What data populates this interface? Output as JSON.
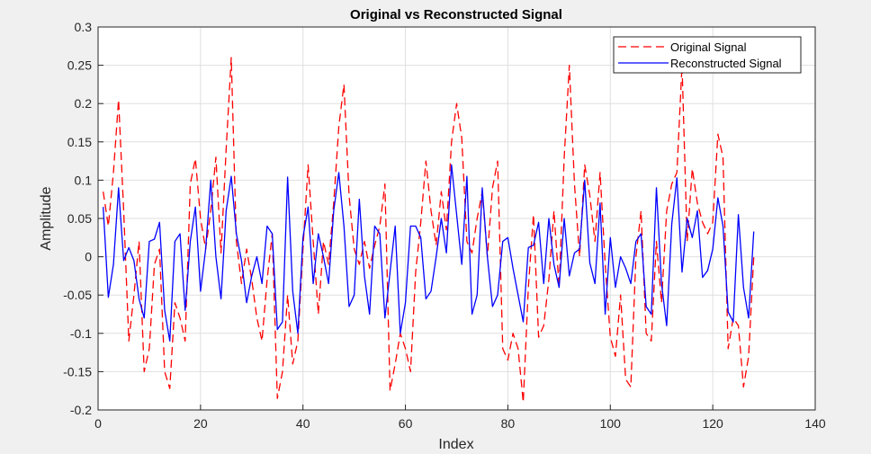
{
  "chart_data": {
    "type": "line",
    "title": "Original vs Reconstructed Signal",
    "xlabel": "Index",
    "ylabel": "Amplitude",
    "xlim": [
      0,
      140
    ],
    "ylim": [
      -0.2,
      0.3
    ],
    "xticks": [
      "0",
      "20",
      "40",
      "60",
      "80",
      "100",
      "120",
      "140"
    ],
    "yticks": [
      "-0.2",
      "-0.15",
      "-0.1",
      "-0.05",
      "0",
      "0.05",
      "0.1",
      "0.15",
      "0.2",
      "0.25",
      "0.3"
    ],
    "grid": true,
    "legend_position": "top-right",
    "series": [
      {
        "name": "Original Signal",
        "color": "#ff0000",
        "style": "dashed",
        "x": [
          1,
          2,
          3,
          4,
          5,
          6,
          7,
          8,
          9,
          10,
          11,
          12,
          13,
          14,
          15,
          16,
          17,
          18,
          19,
          20,
          21,
          22,
          23,
          24,
          25,
          26,
          27,
          28,
          29,
          30,
          31,
          32,
          33,
          34,
          35,
          36,
          37,
          38,
          39,
          40,
          41,
          42,
          43,
          44,
          45,
          46,
          47,
          48,
          49,
          50,
          51,
          52,
          53,
          54,
          55,
          56,
          57,
          58,
          59,
          60,
          61,
          62,
          63,
          64,
          65,
          66,
          67,
          68,
          69,
          70,
          71,
          72,
          73,
          74,
          75,
          76,
          77,
          78,
          79,
          80,
          81,
          82,
          83,
          84,
          85,
          86,
          87,
          88,
          89,
          90,
          91,
          92,
          93,
          94,
          95,
          96,
          97,
          98,
          99,
          100,
          101,
          102,
          103,
          104,
          105,
          106,
          107,
          108,
          109,
          110,
          111,
          112,
          113,
          114,
          115,
          116,
          117,
          118,
          119,
          120,
          121,
          122,
          123,
          124,
          125,
          126,
          127,
          128
        ],
        "values": [
          0.085,
          0.04,
          0.11,
          0.205,
          0.06,
          -0.11,
          -0.05,
          0.02,
          -0.15,
          -0.12,
          -0.01,
          0.01,
          -0.15,
          -0.172,
          -0.06,
          -0.08,
          -0.11,
          0.095,
          0.128,
          0.05,
          0.01,
          0.06,
          0.13,
          0.005,
          0.14,
          0.26,
          0.02,
          -0.035,
          0.01,
          -0.03,
          -0.08,
          -0.11,
          -0.03,
          0.03,
          -0.185,
          -0.15,
          -0.05,
          -0.14,
          -0.11,
          0.01,
          0.12,
          0.02,
          -0.075,
          0.02,
          -0.01,
          0.07,
          0.17,
          0.225,
          0.08,
          0.01,
          -0.01,
          0.02,
          -0.015,
          0.015,
          0.04,
          0.095,
          -0.175,
          -0.14,
          -0.1,
          -0.12,
          -0.15,
          -0.02,
          0.045,
          0.125,
          0.06,
          0.015,
          0.085,
          0.035,
          0.15,
          0.2,
          0.155,
          0.02,
          0.005,
          0.05,
          0.085,
          0.0,
          0.09,
          0.125,
          -0.12,
          -0.135,
          -0.1,
          -0.12,
          -0.19,
          -0.04,
          0.055,
          -0.105,
          -0.09,
          -0.03,
          0.06,
          -0.04,
          0.13,
          0.25,
          0.095,
          0.0,
          0.12,
          0.08,
          0.02,
          0.11,
          -0.01,
          -0.105,
          -0.13,
          -0.05,
          -0.16,
          -0.17,
          0.0,
          0.06,
          -0.1,
          -0.11,
          0.02,
          -0.06,
          0.06,
          0.095,
          0.11,
          0.25,
          0.02,
          0.115,
          0.07,
          0.045,
          0.03,
          0.045,
          0.16,
          0.13,
          -0.12,
          -0.08,
          -0.09,
          -0.17,
          -0.13,
          0.0
        ]
      },
      {
        "name": "Reconstructed Signal",
        "color": "#0000ff",
        "style": "solid",
        "x": [
          1,
          2,
          3,
          4,
          5,
          6,
          7,
          8,
          9,
          10,
          11,
          12,
          13,
          14,
          15,
          16,
          17,
          18,
          19,
          20,
          21,
          22,
          23,
          24,
          25,
          26,
          27,
          28,
          29,
          30,
          31,
          32,
          33,
          34,
          35,
          36,
          37,
          38,
          39,
          40,
          41,
          42,
          43,
          44,
          45,
          46,
          47,
          48,
          49,
          50,
          51,
          52,
          53,
          54,
          55,
          56,
          57,
          58,
          59,
          60,
          61,
          62,
          63,
          64,
          65,
          66,
          67,
          68,
          69,
          70,
          71,
          72,
          73,
          74,
          75,
          76,
          77,
          78,
          79,
          80,
          81,
          82,
          83,
          84,
          85,
          86,
          87,
          88,
          89,
          90,
          91,
          92,
          93,
          94,
          95,
          96,
          97,
          98,
          99,
          100,
          101,
          102,
          103,
          104,
          105,
          106,
          107,
          108,
          109,
          110,
          111,
          112,
          113,
          114,
          115,
          116,
          117,
          118,
          119,
          120,
          121,
          122,
          123,
          124,
          125,
          126,
          127,
          128
        ],
        "values": [
          0.065,
          -0.053,
          -0.01,
          0.09,
          -0.005,
          0.012,
          -0.005,
          -0.055,
          -0.08,
          0.02,
          0.023,
          0.045,
          -0.07,
          -0.11,
          0.02,
          0.03,
          -0.07,
          0.02,
          0.065,
          -0.045,
          0.01,
          0.1,
          0.0,
          -0.055,
          0.06,
          0.105,
          0.03,
          -0.005,
          -0.06,
          -0.025,
          0.0,
          -0.035,
          0.04,
          0.03,
          -0.095,
          -0.085,
          0.104,
          -0.045,
          -0.1,
          0.025,
          0.065,
          -0.035,
          0.03,
          0.0,
          -0.035,
          0.06,
          0.11,
          0.04,
          -0.065,
          -0.05,
          0.075,
          -0.025,
          -0.075,
          0.04,
          0.03,
          -0.08,
          -0.02,
          0.04,
          -0.1,
          -0.06,
          0.04,
          0.04,
          0.025,
          -0.055,
          -0.045,
          0.0,
          0.05,
          0.005,
          0.12,
          0.055,
          -0.01,
          0.105,
          -0.075,
          -0.05,
          0.09,
          0.0,
          -0.065,
          -0.05,
          0.02,
          0.025,
          -0.015,
          -0.05,
          -0.085,
          0.012,
          0.015,
          0.045,
          -0.035,
          0.05,
          -0.01,
          -0.04,
          0.05,
          -0.025,
          0.005,
          0.01,
          0.1,
          -0.008,
          -0.035,
          0.07,
          -0.075,
          0.025,
          -0.04,
          0.0,
          -0.015,
          -0.035,
          0.02,
          0.03,
          -0.065,
          -0.075,
          0.09,
          -0.035,
          -0.09,
          0.043,
          0.103,
          -0.02,
          0.05,
          0.025,
          0.06,
          -0.027,
          -0.018,
          0.01,
          0.077,
          0.04,
          -0.072,
          -0.085,
          0.055,
          -0.04,
          -0.08,
          0.033
        ]
      }
    ]
  }
}
